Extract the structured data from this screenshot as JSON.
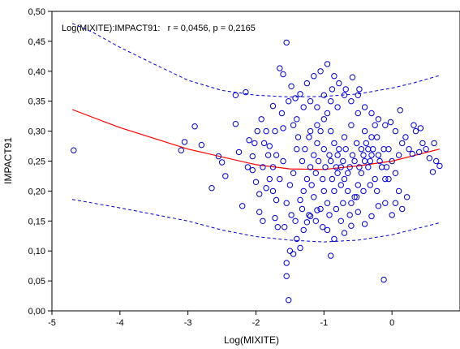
{
  "chart_data": {
    "type": "scatter",
    "title": "",
    "annotation": "Log(MIXITE):IMPACT91:   r = 0,0456, p = 0,2165",
    "xlabel": "Log(MIXITE)",
    "ylabel": "IMPACT91",
    "xlim": [
      -5,
      1
    ],
    "ylim": [
      0,
      0.5
    ],
    "x_ticks": [
      -5,
      -4,
      -3,
      -2,
      -1,
      0
    ],
    "x_tick_labels": [
      "-5",
      "-4",
      "-3",
      "-2",
      "-1",
      "0"
    ],
    "y_ticks": [
      0,
      0.05,
      0.1,
      0.15,
      0.2,
      0.25,
      0.3,
      0.35,
      0.4,
      0.45,
      0.5
    ],
    "y_tick_labels": [
      "0,00",
      "0,05",
      "0,10",
      "0,15",
      "0,20",
      "0,25",
      "0,30",
      "0,35",
      "0,40",
      "0,45",
      "0,50"
    ],
    "grid": false,
    "colors": {
      "points": "#0000cc",
      "fit": "#ff0000",
      "confidence": "#0000cc"
    },
    "fit_curve": {
      "x": [
        -4.7,
        -4.0,
        -3.0,
        -2.0,
        -1.5,
        -1.0,
        -0.5,
        0.0,
        0.7
      ],
      "y": [
        0.336,
        0.306,
        0.27,
        0.244,
        0.237,
        0.236,
        0.242,
        0.25,
        0.27
      ]
    },
    "confidence_upper": {
      "x": [
        -4.7,
        -4.4,
        -4.0,
        -3.5,
        -3.0,
        -2.5,
        -2.0,
        -1.5,
        -1.0,
        -0.5,
        0.0,
        0.3,
        0.7
      ],
      "y": [
        0.48,
        0.465,
        0.44,
        0.412,
        0.385,
        0.368,
        0.36,
        0.357,
        0.358,
        0.362,
        0.372,
        0.38,
        0.393
      ]
    },
    "confidence_lower": {
      "x": [
        -4.7,
        -4.0,
        -3.0,
        -2.5,
        -2.0,
        -1.5,
        -1.0,
        -0.5,
        0.0,
        0.7
      ],
      "y": [
        0.186,
        0.172,
        0.15,
        0.135,
        0.124,
        0.118,
        0.115,
        0.118,
        0.127,
        0.147
      ]
    },
    "points": [
      [
        -4.68,
        0.268
      ],
      [
        -3.05,
        0.282
      ],
      [
        -3.1,
        0.268
      ],
      [
        -2.9,
        0.308
      ],
      [
        -2.8,
        0.277
      ],
      [
        -2.65,
        0.205
      ],
      [
        -2.55,
        0.258
      ],
      [
        -2.5,
        0.248
      ],
      [
        -2.45,
        0.225
      ],
      [
        -2.3,
        0.36
      ],
      [
        -2.15,
        0.365
      ],
      [
        -2.3,
        0.312
      ],
      [
        -2.1,
        0.285
      ],
      [
        -2.05,
        0.258
      ],
      [
        -2.2,
        0.175
      ],
      [
        -2.05,
        0.235
      ],
      [
        -2.0,
        0.215
      ],
      [
        -1.95,
        0.165
      ],
      [
        -1.9,
        0.15
      ],
      [
        -1.85,
        0.3
      ],
      [
        -1.8,
        0.275
      ],
      [
        -1.75,
        0.342
      ],
      [
        -1.75,
        0.2
      ],
      [
        -1.7,
        0.185
      ],
      [
        -1.72,
        0.155
      ],
      [
        -1.68,
        0.14
      ],
      [
        -1.65,
        0.405
      ],
      [
        -1.6,
        0.395
      ],
      [
        -1.55,
        0.448
      ],
      [
        -1.48,
        0.375
      ],
      [
        -1.42,
        0.355
      ],
      [
        -1.5,
        0.1
      ],
      [
        -1.55,
        0.08
      ],
      [
        -1.55,
        0.058
      ],
      [
        -1.52,
        0.018
      ],
      [
        -1.45,
        0.095
      ],
      [
        -1.4,
        0.12
      ],
      [
        -1.35,
        0.105
      ],
      [
        -1.3,
        0.135
      ],
      [
        -1.25,
        0.148
      ],
      [
        -1.2,
        0.158
      ],
      [
        -1.1,
        0.168
      ],
      [
        -1.0,
        0.2
      ],
      [
        -0.95,
        0.135
      ],
      [
        -0.9,
        0.092
      ],
      [
        -0.85,
        0.12
      ],
      [
        -0.75,
        0.15
      ],
      [
        -0.7,
        0.13
      ],
      [
        -0.6,
        0.142
      ],
      [
        -0.5,
        0.165
      ],
      [
        -0.4,
        0.145
      ],
      [
        -0.3,
        0.158
      ],
      [
        -0.2,
        0.175
      ],
      [
        -0.1,
        0.18
      ],
      [
        -0.05,
        0.22
      ],
      [
        0.0,
        0.16
      ],
      [
        0.05,
        0.18
      ],
      [
        0.1,
        0.2
      ],
      [
        0.15,
        0.17
      ],
      [
        0.22,
        0.19
      ],
      [
        0.25,
        0.27
      ],
      [
        0.3,
        0.262
      ],
      [
        0.35,
        0.3
      ],
      [
        0.4,
        0.265
      ],
      [
        0.45,
        0.28
      ],
      [
        0.5,
        0.27
      ],
      [
        0.55,
        0.255
      ],
      [
        0.6,
        0.232
      ],
      [
        0.65,
        0.25
      ],
      [
        0.7,
        0.242
      ],
      [
        0.62,
        0.28
      ],
      [
        0.32,
        0.31
      ],
      [
        0.42,
        0.305
      ],
      [
        0.12,
        0.335
      ],
      [
        -0.02,
        0.315
      ],
      [
        0.2,
        0.29
      ],
      [
        -0.12,
        0.052
      ],
      [
        -1.05,
        0.4
      ],
      [
        -1.15,
        0.392
      ],
      [
        -0.95,
        0.412
      ],
      [
        -0.85,
        0.392
      ],
      [
        -1.25,
        0.38
      ],
      [
        -1.35,
        0.362
      ],
      [
        -1.4,
        0.32
      ],
      [
        -1.6,
        0.305
      ],
      [
        -1.7,
        0.26
      ],
      [
        -1.8,
        0.22
      ],
      [
        -1.85,
        0.205
      ],
      [
        -1.9,
        0.24
      ],
      [
        -1.95,
        0.195
      ],
      [
        -1.6,
        0.25
      ],
      [
        -1.55,
        0.18
      ],
      [
        -1.5,
        0.21
      ],
      [
        -1.45,
        0.23
      ],
      [
        -1.4,
        0.27
      ],
      [
        -1.35,
        0.185
      ],
      [
        -1.3,
        0.2
      ],
      [
        -1.25,
        0.22
      ],
      [
        -1.2,
        0.24
      ],
      [
        -1.15,
        0.26
      ],
      [
        -1.1,
        0.28
      ],
      [
        -1.05,
        0.3
      ],
      [
        -1.0,
        0.32
      ],
      [
        -0.95,
        0.33
      ],
      [
        -0.9,
        0.3
      ],
      [
        -0.85,
        0.28
      ],
      [
        -0.8,
        0.26
      ],
      [
        -0.75,
        0.24
      ],
      [
        -0.7,
        0.22
      ],
      [
        -0.65,
        0.2
      ],
      [
        -0.6,
        0.18
      ],
      [
        -0.55,
        0.19
      ],
      [
        -0.5,
        0.21
      ],
      [
        -0.45,
        0.23
      ],
      [
        -0.4,
        0.25
      ],
      [
        -0.35,
        0.27
      ],
      [
        -0.3,
        0.29
      ],
      [
        -0.25,
        0.31
      ],
      [
        -0.2,
        0.26
      ],
      [
        -0.15,
        0.24
      ],
      [
        -0.1,
        0.22
      ],
      [
        -0.05,
        0.27
      ],
      [
        0.0,
        0.25
      ],
      [
        0.05,
        0.23
      ],
      [
        0.1,
        0.26
      ],
      [
        -1.15,
        0.19
      ],
      [
        -1.05,
        0.17
      ],
      [
        -0.95,
        0.18
      ],
      [
        -0.85,
        0.2
      ],
      [
        -0.75,
        0.21
      ],
      [
        -0.65,
        0.23
      ],
      [
        -0.55,
        0.25
      ],
      [
        -0.45,
        0.27
      ],
      [
        -0.35,
        0.24
      ],
      [
        -0.25,
        0.22
      ],
      [
        -1.2,
        0.3
      ],
      [
        -1.1,
        0.31
      ],
      [
        -1.0,
        0.27
      ],
      [
        -0.9,
        0.25
      ],
      [
        -0.8,
        0.23
      ],
      [
        -0.7,
        0.29
      ],
      [
        -0.6,
        0.31
      ],
      [
        -0.5,
        0.33
      ],
      [
        -0.4,
        0.3
      ],
      [
        -0.3,
        0.26
      ],
      [
        -1.65,
        0.22
      ],
      [
        -1.75,
        0.24
      ],
      [
        -1.82,
        0.26
      ],
      [
        -1.88,
        0.28
      ],
      [
        -1.72,
        0.3
      ],
      [
        -1.62,
        0.33
      ],
      [
        -1.52,
        0.35
      ],
      [
        -1.45,
        0.31
      ],
      [
        -1.38,
        0.29
      ],
      [
        -1.32,
        0.25
      ],
      [
        -1.28,
        0.27
      ],
      [
        -1.22,
        0.29
      ],
      [
        -1.18,
        0.21
      ],
      [
        -1.12,
        0.23
      ],
      [
        -1.08,
        0.25
      ],
      [
        -1.02,
        0.22
      ],
      [
        -0.98,
        0.24
      ],
      [
        -0.92,
        0.26
      ],
      [
        -0.88,
        0.22
      ],
      [
        -0.82,
        0.24
      ],
      [
        -0.78,
        0.27
      ],
      [
        -0.72,
        0.25
      ],
      [
        -0.68,
        0.27
      ],
      [
        -0.62,
        0.24
      ],
      [
        -0.58,
        0.26
      ],
      [
        -0.52,
        0.28
      ],
      [
        -0.48,
        0.24
      ],
      [
        -0.42,
        0.26
      ],
      [
        -0.38,
        0.28
      ],
      [
        -0.32,
        0.25
      ],
      [
        -0.28,
        0.27
      ],
      [
        -0.22,
        0.29
      ],
      [
        -0.18,
        0.25
      ],
      [
        -0.12,
        0.27
      ],
      [
        -0.08,
        0.24
      ],
      [
        -1.58,
        0.14
      ],
      [
        -1.48,
        0.16
      ],
      [
        -1.42,
        0.15
      ],
      [
        -1.32,
        0.17
      ],
      [
        -1.22,
        0.16
      ],
      [
        -1.12,
        0.15
      ],
      [
        -1.02,
        0.14
      ],
      [
        -0.92,
        0.16
      ],
      [
        -0.82,
        0.17
      ],
      [
        -0.72,
        0.18
      ],
      [
        -0.62,
        0.16
      ],
      [
        -0.52,
        0.19
      ],
      [
        -0.42,
        0.2
      ],
      [
        -0.32,
        0.21
      ],
      [
        -0.22,
        0.2
      ],
      [
        -1.3,
        0.34
      ],
      [
        -1.2,
        0.35
      ],
      [
        -1.1,
        0.34
      ],
      [
        -1.0,
        0.36
      ],
      [
        -0.9,
        0.35
      ],
      [
        -0.8,
        0.34
      ],
      [
        -0.7,
        0.36
      ],
      [
        -0.6,
        0.35
      ],
      [
        -0.5,
        0.36
      ],
      [
        -0.4,
        0.34
      ],
      [
        -0.3,
        0.33
      ],
      [
        -0.2,
        0.32
      ],
      [
        -0.1,
        0.31
      ],
      [
        0.05,
        0.3
      ],
      [
        0.15,
        0.28
      ],
      [
        -2.25,
        0.265
      ],
      [
        -2.12,
        0.24
      ],
      [
        -2.02,
        0.28
      ],
      [
        -1.98,
        0.3
      ],
      [
        -1.92,
        0.32
      ],
      [
        -0.88,
        0.37
      ],
      [
        -0.78,
        0.38
      ],
      [
        -0.68,
        0.37
      ],
      [
        -0.58,
        0.39
      ],
      [
        -0.48,
        0.37
      ]
    ]
  }
}
